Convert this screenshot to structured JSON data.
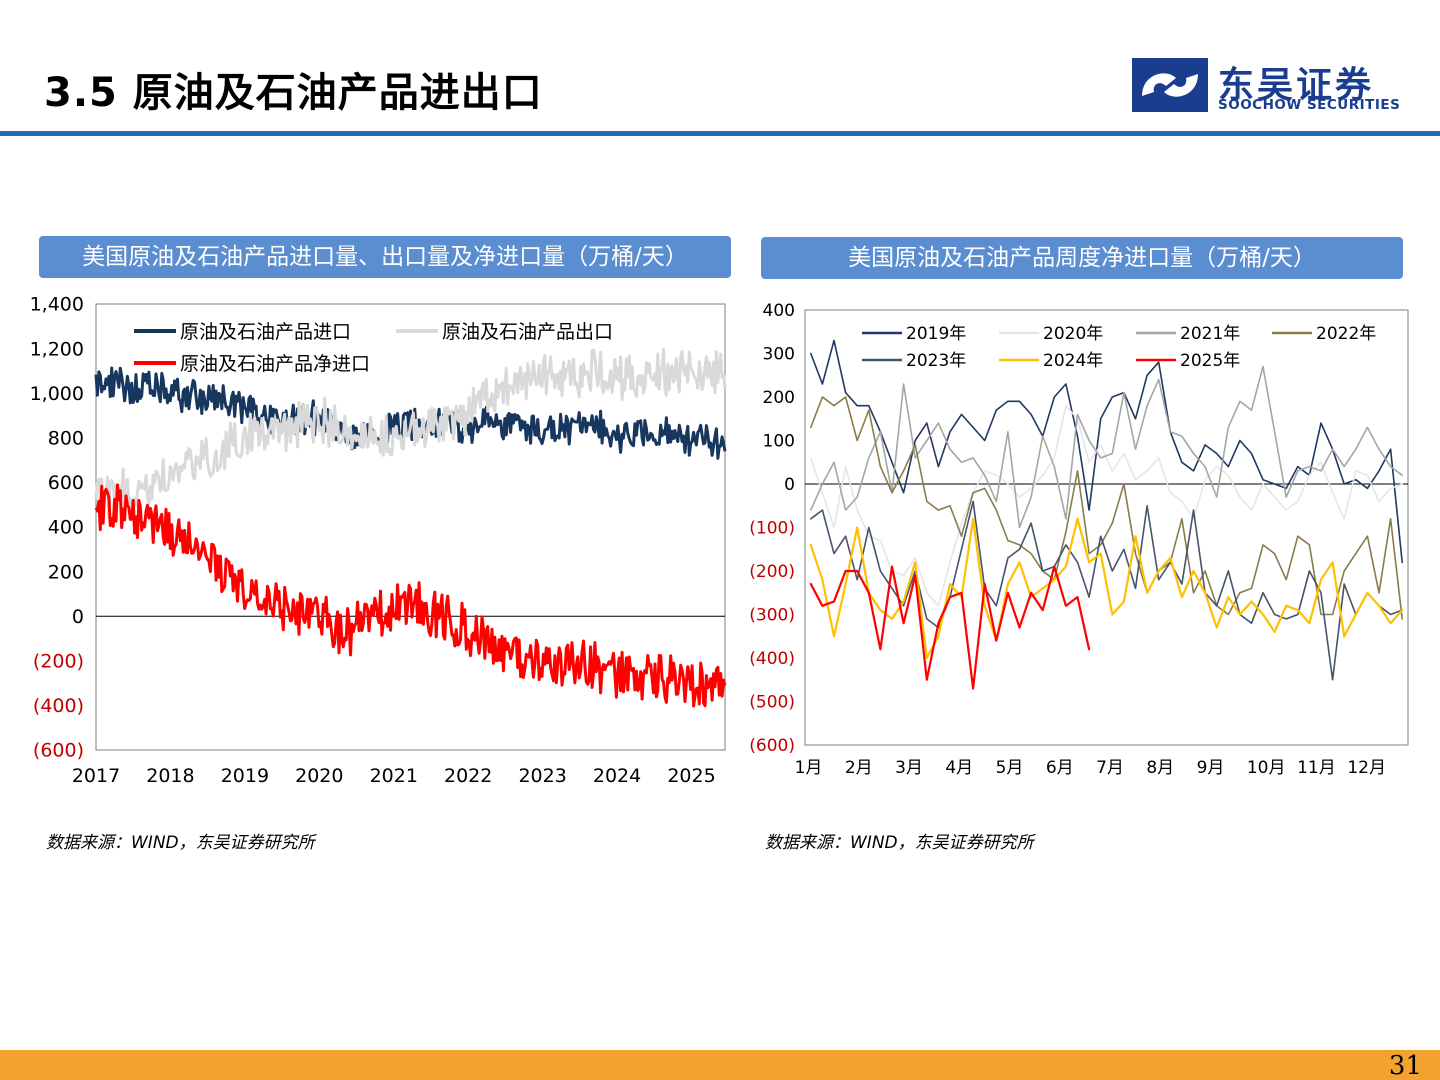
{
  "header": {
    "title": "3.5 原油及石油产品进出口",
    "logo_cn": "东吴证券",
    "logo_en": "SOOCHOW SECURITIES"
  },
  "colors": {
    "accent": "#1f6fb5",
    "header_bg": "#5b8dd1",
    "footer": "#f3a12f",
    "brand": "#1a3d8f"
  },
  "chart_data": [
    {
      "type": "line",
      "title": "美国原油及石油产品进口量、出口量及净进口量（万桶/天）",
      "x_tick_labels": [
        "2017",
        "2018",
        "2019",
        "2020",
        "2021",
        "2022",
        "2023",
        "2024",
        "2025"
      ],
      "x_range": [
        2017,
        2025.45
      ],
      "y_tick_labels": [
        "1,400",
        "1,200",
        "1,000",
        "800",
        "600",
        "400",
        "200",
        "0",
        "(200)",
        "(400)",
        "(600)"
      ],
      "y_ticks": [
        1400,
        1200,
        1000,
        800,
        600,
        400,
        200,
        0,
        -200,
        -400,
        -600
      ],
      "ylim": [
        -600,
        1400
      ],
      "grid": false,
      "legend_position": "top-left",
      "series": [
        {
          "name": "原油及石油产品进口",
          "color": "#17375e",
          "x": [
            2017.0,
            2017.5,
            2018.0,
            2018.5,
            2019.0,
            2019.5,
            2020.0,
            2020.25,
            2020.5,
            2021.0,
            2021.5,
            2022.0,
            2022.5,
            2023.0,
            2023.5,
            2024.0,
            2024.5,
            2025.0,
            2025.45
          ],
          "values": [
            1050,
            1030,
            1000,
            980,
            930,
            880,
            900,
            830,
            780,
            840,
            880,
            850,
            870,
            830,
            850,
            820,
            830,
            790,
            780
          ]
        },
        {
          "name": "原油及石油产品出口",
          "color": "#d9d9d9",
          "x": [
            2017.0,
            2017.5,
            2018.0,
            2018.5,
            2019.0,
            2019.5,
            2020.0,
            2020.5,
            2021.0,
            2021.5,
            2022.0,
            2022.5,
            2023.0,
            2023.5,
            2024.0,
            2024.5,
            2025.0,
            2025.45
          ],
          "values": [
            540,
            560,
            630,
            720,
            810,
            840,
            880,
            830,
            780,
            860,
            920,
            1030,
            1080,
            1090,
            1080,
            1090,
            1100,
            1080
          ]
        },
        {
          "name": "原油及石油产品净进口",
          "color": "#ff0000",
          "x": [
            2017.0,
            2017.5,
            2018.0,
            2018.5,
            2019.0,
            2019.5,
            2020.0,
            2020.25,
            2020.5,
            2021.0,
            2021.5,
            2022.0,
            2022.5,
            2023.0,
            2023.5,
            2024.0,
            2024.5,
            2025.0,
            2025.45
          ],
          "values": [
            500,
            470,
            370,
            260,
            120,
            40,
            20,
            -60,
            -50,
            60,
            20,
            -70,
            -160,
            -230,
            -200,
            -270,
            -280,
            -300,
            -310
          ]
        }
      ]
    },
    {
      "type": "line",
      "title": "美国原油及石油产品周度净进口量（万桶/天）",
      "x_tick_labels": [
        "1月",
        "2月",
        "3月",
        "4月",
        "5月",
        "6月",
        "7月",
        "8月",
        "9月",
        "10月",
        "11月",
        "12月"
      ],
      "x_range": [
        0,
        52
      ],
      "y_tick_labels": [
        "400",
        "300",
        "200",
        "100",
        "0",
        "(100)",
        "(200)",
        "(300)",
        "(400)",
        "(500)",
        "(600)"
      ],
      "y_ticks": [
        400,
        300,
        200,
        100,
        0,
        -100,
        -200,
        -300,
        -400,
        -500,
        -600
      ],
      "ylim": [
        -600,
        400
      ],
      "grid": false,
      "legend_position": "top",
      "series": [
        {
          "name": "2019年",
          "color": "#203864",
          "values": [
            300,
            230,
            330,
            210,
            180,
            180,
            120,
            50,
            -20,
            100,
            140,
            40,
            120,
            160,
            130,
            100,
            170,
            190,
            190,
            160,
            110,
            200,
            230,
            110,
            -60,
            150,
            200,
            210,
            150,
            250,
            280,
            120,
            50,
            30,
            90,
            70,
            40,
            100,
            70,
            10,
            0,
            -10,
            40,
            20,
            140,
            80,
            0,
            10,
            -10,
            30,
            80,
            -180
          ]
        },
        {
          "name": "2020年",
          "color": "#e7e6e6",
          "values": [
            60,
            -20,
            -100,
            40,
            -60,
            -120,
            -130,
            -200,
            -210,
            -170,
            -250,
            -280,
            -180,
            -90,
            -20,
            30,
            20,
            0,
            -30,
            -10,
            20,
            60,
            180,
            150,
            50,
            90,
            30,
            70,
            10,
            30,
            60,
            -20,
            -40,
            -80,
            10,
            40,
            20,
            -30,
            -60,
            0,
            -30,
            -60,
            -40,
            20,
            50,
            -20,
            -80,
            30,
            20,
            -40,
            -10,
            0
          ]
        },
        {
          "name": "2021年",
          "color": "#a5a5a5",
          "values": [
            -60,
            0,
            50,
            -60,
            -30,
            60,
            120,
            -20,
            230,
            60,
            100,
            140,
            80,
            50,
            60,
            20,
            -40,
            120,
            -100,
            -30,
            110,
            40,
            -80,
            160,
            100,
            60,
            70,
            210,
            80,
            180,
            240,
            120,
            110,
            70,
            40,
            -30,
            130,
            190,
            170,
            270,
            120,
            -30,
            30,
            40,
            30,
            80,
            40,
            80,
            130,
            80,
            40,
            20
          ]
        },
        {
          "name": "2022年",
          "color": "#8a7b4c",
          "values": [
            130,
            200,
            180,
            200,
            100,
            170,
            40,
            -20,
            30,
            90,
            -40,
            -60,
            -50,
            -120,
            -20,
            -10,
            -60,
            -130,
            -140,
            -160,
            -200,
            -220,
            -110,
            30,
            -160,
            -140,
            -90,
            0,
            -160,
            -250,
            -200,
            -180,
            -80,
            -250,
            -200,
            -280,
            -300,
            -250,
            -240,
            -140,
            -160,
            -220,
            -120,
            -140,
            -300,
            -300,
            -200,
            -160,
            -120,
            -250,
            -80,
            -310
          ]
        },
        {
          "name": "2023年",
          "color": "#44546a",
          "values": [
            -80,
            -60,
            -160,
            -120,
            -220,
            -100,
            -200,
            -240,
            -280,
            -200,
            -310,
            -330,
            -260,
            -150,
            -40,
            -240,
            -280,
            -170,
            -150,
            -90,
            -200,
            -190,
            -140,
            -180,
            -260,
            -120,
            -200,
            -150,
            -240,
            -50,
            -220,
            -180,
            -230,
            -60,
            -250,
            -280,
            -200,
            -300,
            -320,
            -250,
            -300,
            -310,
            -300,
            -200,
            -250,
            -450,
            -230,
            -300,
            -250,
            -280,
            -300,
            -290
          ]
        },
        {
          "name": "2024年",
          "color": "#ffc000",
          "values": [
            -140,
            -220,
            -350,
            -230,
            -100,
            -250,
            -290,
            -310,
            -270,
            -180,
            -400,
            -350,
            -230,
            -260,
            -80,
            -280,
            -360,
            -230,
            -180,
            -260,
            -240,
            -220,
            -190,
            -80,
            -180,
            -160,
            -300,
            -270,
            -120,
            -250,
            -200,
            -170,
            -260,
            -200,
            -250,
            -330,
            -260,
            -300,
            -270,
            -300,
            -340,
            -280,
            -290,
            -320,
            -220,
            -180,
            -350,
            -300,
            -250,
            -280,
            -320,
            -290
          ]
        },
        {
          "name": "2025年",
          "color": "#ff0000",
          "values": [
            -230,
            -280,
            -270,
            -200,
            -200,
            -250,
            -380,
            -190,
            -320,
            -210,
            -450,
            -320,
            -260,
            -250,
            -470,
            -230,
            -360,
            -250,
            -330,
            -250,
            -290,
            -190,
            -280,
            -260,
            -380
          ]
        }
      ]
    }
  ],
  "sources": {
    "left": "数据来源：WIND，东吴证券研究所",
    "right": "数据来源：WIND，东吴证券研究所"
  },
  "footer": {
    "page_number": "31"
  }
}
